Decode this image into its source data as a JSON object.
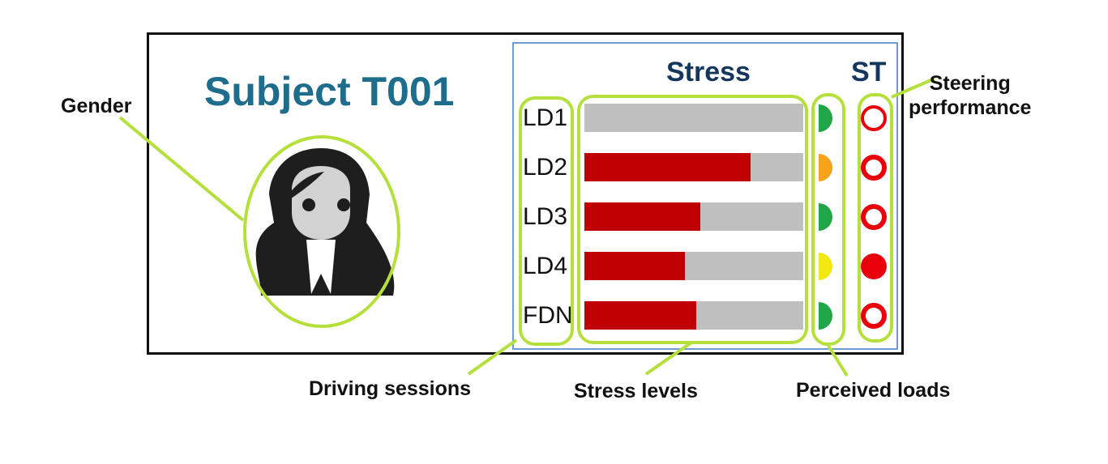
{
  "subject_title": "Subject T001",
  "gender_icon": "female-person-icon",
  "headers": {
    "stress": "Stress",
    "steering": "ST"
  },
  "rows": [
    {
      "session": "LD1",
      "stress_fraction": 0.0,
      "perceived_load_color": "#22a546",
      "steering_result": "hollow"
    },
    {
      "session": "LD2",
      "stress_fraction": 0.76,
      "perceived_load_color": "#f5a31b",
      "steering_result": "hollow"
    },
    {
      "session": "LD3",
      "stress_fraction": 0.53,
      "perceived_load_color": "#22a546",
      "steering_result": "hollow"
    },
    {
      "session": "LD4",
      "stress_fraction": 0.46,
      "perceived_load_color": "#f4e812",
      "steering_result": "filled"
    },
    {
      "session": "FDN",
      "stress_fraction": 0.51,
      "perceived_load_color": "#22a546",
      "steering_result": "hollow"
    }
  ],
  "annotations": {
    "gender": "Gender",
    "steering_line1": "Steering",
    "steering_line2": "performance",
    "driving_sessions": "Driving sessions",
    "stress_levels": "Stress levels",
    "perceived_loads": "Perceived loads"
  },
  "colors": {
    "title": "#1f6d8c",
    "header": "#15365d",
    "stress_bar": "#c00000",
    "bar_track": "#bfbfbf",
    "steering_marker": "#e8000b",
    "highlight": "#b5e03c",
    "panel_border": "#6f9bd6"
  }
}
